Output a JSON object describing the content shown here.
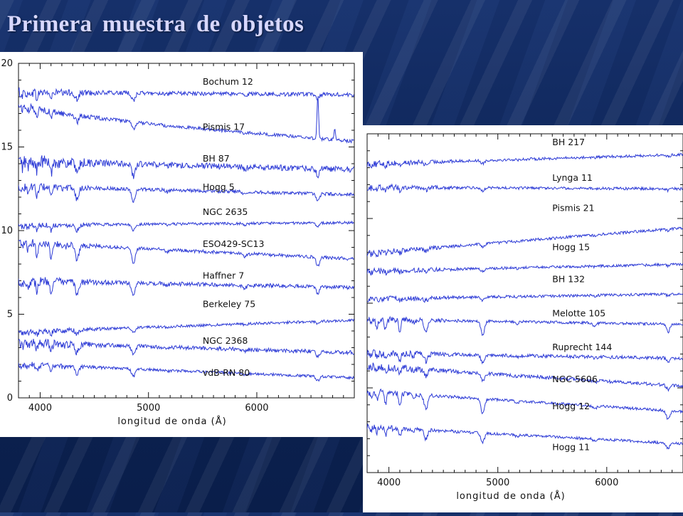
{
  "slide": {
    "title": "Primera muestra de objetos"
  },
  "chart_data": [
    {
      "type": "line",
      "xlabel": "longitud de onda (Å)",
      "ylabel": "",
      "xlim": [
        3800,
        6900
      ],
      "ylim": [
        0,
        20
      ],
      "xticks": [
        4000,
        5000,
        6000
      ],
      "yticks": [
        0,
        5,
        10,
        15,
        20
      ],
      "grid": false,
      "series": [
        {
          "name": "Bochum 12",
          "offset": 18.2,
          "slope": -0.15,
          "depth": 0.5,
          "noise": 0.12,
          "label_y": 18.9
        },
        {
          "name": "Pismis 17",
          "offset": 16.1,
          "slope": -1.55,
          "depth": 0.5,
          "noise": 0.1,
          "label_y": 16.2,
          "curve": 0.6
        },
        {
          "name": "BH 87",
          "offset": 13.9,
          "slope": -0.5,
          "depth": 0.8,
          "noise": 0.18,
          "label_y": 14.3
        },
        {
          "name": "Hogg 5",
          "offset": 12.4,
          "slope": -0.5,
          "depth": 0.8,
          "noise": 0.1,
          "label_y": 12.6
        },
        {
          "name": "NGC 2635",
          "offset": 10.4,
          "slope": 0.15,
          "depth": 0.4,
          "noise": 0.08,
          "label_y": 11.1
        },
        {
          "name": "ESO429-SC13",
          "offset": 8.8,
          "slope": -1.0,
          "depth": 1.0,
          "noise": 0.1,
          "label_y": 9.2
        },
        {
          "name": "Haffner 7",
          "offset": 6.8,
          "slope": -0.4,
          "depth": 0.8,
          "noise": 0.12,
          "label_y": 7.3
        },
        {
          "name": "Berkeley 75",
          "offset": 4.3,
          "slope": 0.7,
          "depth": 0.3,
          "noise": 0.08,
          "label_y": 5.6
        },
        {
          "name": "NGC 2368",
          "offset": 3.0,
          "slope": -0.6,
          "depth": 0.6,
          "noise": 0.12,
          "label_y": 3.4
        },
        {
          "name": "vdB-RN 80",
          "offset": 1.6,
          "slope": -0.8,
          "depth": 0.5,
          "noise": 0.08,
          "label_y": 1.5
        }
      ]
    },
    {
      "type": "line",
      "xlabel": "longitud de onda (Å)",
      "ylabel": "",
      "xlim": [
        3800,
        6700
      ],
      "yticks": [
        0
      ],
      "xticks": [
        4000,
        5000,
        6000
      ],
      "ylim": [
        0,
        20
      ],
      "grid": false,
      "series": [
        {
          "name": "BH 217",
          "offset": 18.5,
          "slope": 0.55,
          "depth": 0.2,
          "noise": 0.08,
          "label_y": 19.5
        },
        {
          "name": "Lynga 11",
          "offset": 16.8,
          "slope": -0.1,
          "depth": 0.2,
          "noise": 0.08,
          "label_y": 17.4
        },
        {
          "name": "Pismis 21",
          "offset": 13.7,
          "slope": 1.5,
          "depth": 0.2,
          "noise": 0.08,
          "label_y": 15.6
        },
        {
          "name": "Hogg 15",
          "offset": 12.1,
          "slope": 0.4,
          "depth": 0.2,
          "noise": 0.08,
          "label_y": 13.3
        },
        {
          "name": "BH 132",
          "offset": 10.4,
          "slope": 0.3,
          "depth": 0.2,
          "noise": 0.08,
          "label_y": 11.4
        },
        {
          "name": "Melotte 105",
          "offset": 8.9,
          "slope": -0.3,
          "depth": 0.9,
          "noise": 0.08,
          "label_y": 9.4
        },
        {
          "name": "Ruprecht 144",
          "offset": 6.9,
          "slope": -0.3,
          "depth": 0.5,
          "noise": 0.1,
          "label_y": 7.4
        },
        {
          "name": "NGC 5606",
          "offset": 5.7,
          "slope": -1.2,
          "depth": 0.5,
          "noise": 0.1,
          "label_y": 5.5
        },
        {
          "name": "Hogg 12",
          "offset": 4.2,
          "slope": -1.2,
          "depth": 1.0,
          "noise": 0.08,
          "label_y": 3.9
        },
        {
          "name": "Hogg 11",
          "offset": 2.2,
          "slope": -1.0,
          "depth": 0.6,
          "noise": 0.08,
          "label_y": 1.5
        }
      ]
    }
  ]
}
